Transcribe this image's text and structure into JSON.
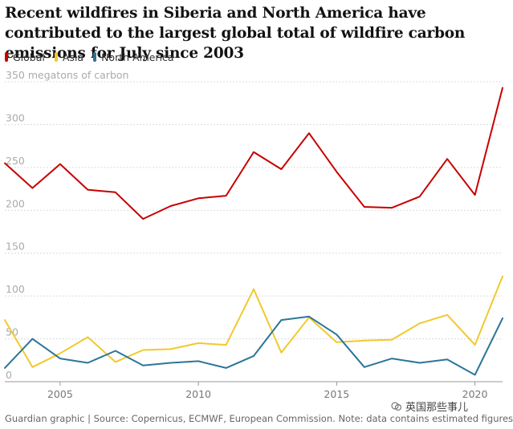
{
  "chart_data": {
    "type": "line",
    "title": "Recent wildfires in Siberia and North America have contributed to the largest global total of wildfire carbon emissions for July since 2003",
    "ylabel": "megatons of carbon",
    "y_tick_labels": [
      "350 megatons of carbon",
      "300",
      "250",
      "200",
      "150",
      "100",
      "50",
      "0"
    ],
    "y_ticks": [
      350,
      300,
      250,
      200,
      150,
      100,
      50,
      0
    ],
    "ylim": [
      0,
      350
    ],
    "x_ticks": [
      2005,
      2010,
      2015,
      2020
    ],
    "xlim": [
      2003,
      2021
    ],
    "x": [
      2003,
      2004,
      2005,
      2006,
      2007,
      2008,
      2009,
      2010,
      2011,
      2012,
      2013,
      2014,
      2015,
      2016,
      2017,
      2018,
      2019,
      2020,
      2021
    ],
    "grid": true,
    "legend_position": "top-left",
    "series": [
      {
        "name": "Global",
        "color": "#c70000",
        "values": [
          255,
          226,
          254,
          224,
          221,
          190,
          205,
          214,
          217,
          268,
          248,
          290,
          245,
          204,
          203,
          216,
          260,
          218,
          343
        ]
      },
      {
        "name": "Asia",
        "color": "#f1c92d",
        "values": [
          72,
          17,
          33,
          52,
          23,
          37,
          38,
          45,
          43,
          108,
          34,
          75,
          46,
          48,
          49,
          68,
          78,
          43,
          123
        ]
      },
      {
        "name": "North America",
        "color": "#2b7599",
        "values": [
          16,
          50,
          27,
          22,
          36,
          19,
          22,
          24,
          16,
          30,
          72,
          76,
          55,
          17,
          27,
          22,
          26,
          8,
          74
        ]
      }
    ]
  },
  "source": "Guardian graphic | Source: Copernicus, ECMWF, European Commission. Note: data contains estimated figures",
  "watermark": "英国那些事儿"
}
